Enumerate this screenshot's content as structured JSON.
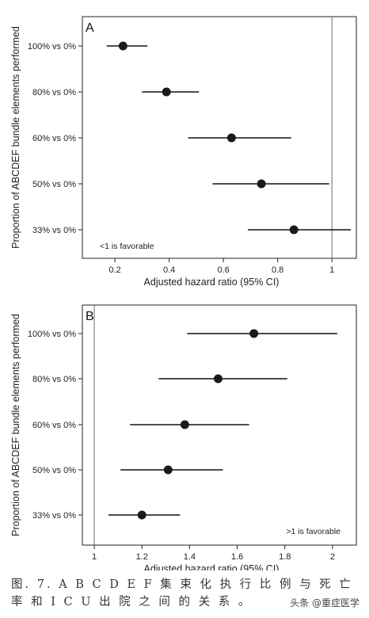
{
  "chart_data": [
    {
      "type": "forest",
      "panel_label": "A",
      "categories": [
        "100% vs 0%",
        "80% vs 0%",
        "60% vs 0%",
        "50% vs 0%",
        "33% vs 0%"
      ],
      "estimates": [
        0.23,
        0.39,
        0.63,
        0.74,
        0.86
      ],
      "ci_lower": [
        0.17,
        0.3,
        0.47,
        0.56,
        0.69
      ],
      "ci_upper": [
        0.32,
        0.51,
        0.85,
        0.99,
        1.07
      ],
      "reference_line": 1,
      "xlim": [
        0.08,
        1.09
      ],
      "xticks": [
        0.2,
        0.4,
        0.6,
        0.8,
        1
      ],
      "xtick_labels": [
        "0.2",
        "0.4",
        "0.6",
        "0.8",
        "1"
      ],
      "xlabel": "Adjusted hazard ratio (95% CI)",
      "ylabel": "Proportion of ABCDEF bundle elements performed",
      "annotation": "<1 is favorable"
    },
    {
      "type": "forest",
      "panel_label": "B",
      "categories": [
        "100% vs 0%",
        "80% vs 0%",
        "60% vs 0%",
        "50% vs 0%",
        "33% vs 0%"
      ],
      "estimates": [
        1.67,
        1.52,
        1.38,
        1.31,
        1.2
      ],
      "ci_lower": [
        1.39,
        1.27,
        1.15,
        1.11,
        1.06
      ],
      "ci_upper": [
        2.02,
        1.81,
        1.65,
        1.54,
        1.36
      ],
      "reference_line": 1,
      "xlim": [
        0.95,
        2.1
      ],
      "xticks": [
        1,
        1.2,
        1.4,
        1.6,
        1.8,
        2
      ],
      "xtick_labels": [
        "1",
        "1.2",
        "1.4",
        "1.6",
        "1.8",
        "2"
      ],
      "xlabel": "Adjusted hazard ratio (95% CI)",
      "ylabel": "Proportion of ABCDEF bundle elements performed",
      "annotation": ">1 is favorable"
    }
  ],
  "caption": "图. 7. A B C D E F 集 束 化 执 行 比 例 与 死 亡 率 和 I C U 出 院 之 间 的 关 系 。",
  "watermark": "头条 @重症医学"
}
